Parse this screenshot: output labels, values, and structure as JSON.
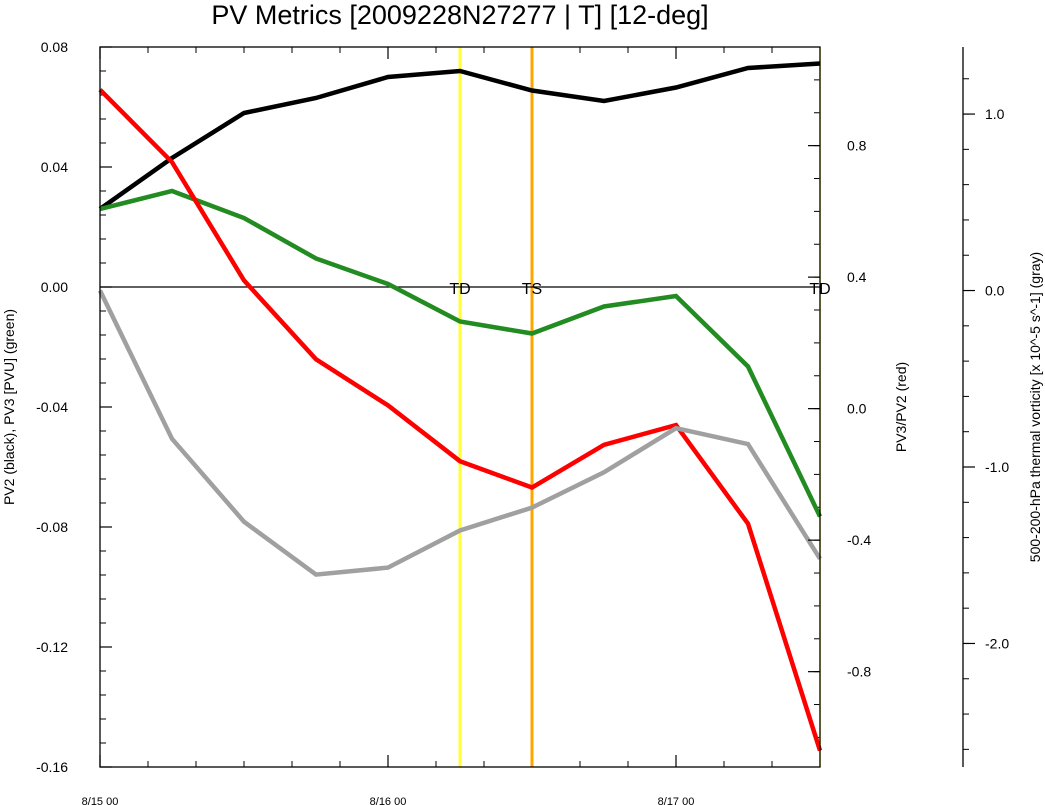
{
  "chart_data": {
    "type": "line",
    "title": "PV Metrics [2009228N27277 | T] [12-deg]",
    "x_tick_labels": [
      "8/15 00",
      "8/16 00",
      "8/17 00"
    ],
    "x_tick_hours": [
      0,
      24,
      48
    ],
    "x_range_hours": [
      0,
      60
    ],
    "y_left": {
      "label": "PV2 (black), PV3 [PVU] (green)",
      "range": [
        -0.16,
        0.08
      ],
      "ticks": [
        "0.08",
        "0.04",
        "0.00",
        "-0.04",
        "-0.08",
        "-0.12",
        "-0.16"
      ],
      "tick_values": [
        0.08,
        0.04,
        0.0,
        -0.04,
        -0.08,
        -0.12,
        -0.16
      ]
    },
    "y_right": {
      "label": "PV3/PV2 (red)",
      "range": [
        -1.09,
        1.1
      ],
      "ticks": [
        "0.8",
        "0.4",
        "0.0",
        "-0.4",
        "-0.8"
      ],
      "tick_values": [
        0.8,
        0.4,
        0.0,
        -0.4,
        -0.8
      ]
    },
    "y_far_right": {
      "label": "500-200-hPa thermal vorticity [x 10^-5 s^-1] (gray)",
      "range": [
        -2.7,
        1.38
      ],
      "ticks": [
        "1.0",
        "0.0",
        "-1.0",
        "-2.0"
      ],
      "tick_values": [
        1.0,
        0.0,
        -1.0,
        -2.0
      ]
    },
    "x": [
      0,
      6,
      12,
      18,
      24,
      30,
      36,
      42,
      48,
      54,
      60
    ],
    "series": [
      {
        "axis": "left",
        "color": "#000000",
        "values": [
          0.026,
          0.043,
          0.058,
          0.063,
          0.07,
          0.072,
          0.0655,
          0.062,
          0.0665,
          0.073,
          0.0745
        ]
      },
      {
        "axis": "left",
        "color": "#228b22",
        "values": [
          0.026,
          0.032,
          0.023,
          0.0095,
          0.001,
          -0.0115,
          -0.0155,
          -0.0065,
          -0.003,
          -0.0265,
          -0.0765
        ]
      },
      {
        "axis": "right",
        "color": "#ff0000",
        "values": [
          0.97,
          0.75,
          0.39,
          0.15,
          0.01,
          -0.16,
          -0.24,
          -0.11,
          -0.05,
          -0.35,
          -1.04
        ]
      },
      {
        "axis": "far_right",
        "color": "#a0a0a0",
        "values": [
          0.0,
          -0.84,
          -1.31,
          -1.61,
          -1.57,
          -1.36,
          -1.23,
          -1.03,
          -0.78,
          -0.87,
          -1.52
        ]
      }
    ],
    "zero_line": 0.0,
    "events": [
      {
        "label": "TD",
        "hour": 30,
        "color": "#ffff33"
      },
      {
        "label": "TS",
        "hour": 36,
        "color": "#ffa500"
      },
      {
        "label": "TD",
        "hour": 60,
        "color": "#ffff33"
      }
    ]
  }
}
